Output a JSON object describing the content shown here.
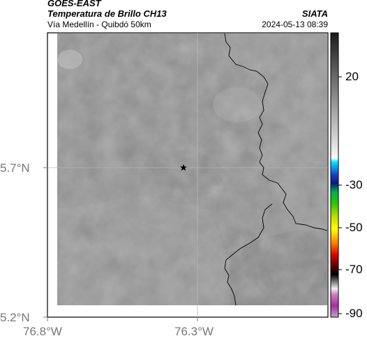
{
  "header": {
    "satellite": "GOES-EAST",
    "product": "Temperatura de Brillo CH13",
    "region": "Vía Medellín - Quibdó 50km",
    "source": "SIATA",
    "timestamp": "2024-05-13 08:39"
  },
  "map": {
    "lat_labels": [
      "5.7°N",
      "5.2°N"
    ],
    "lon_labels": [
      "76.8°W",
      "76.3°W"
    ],
    "marker": "star-marker",
    "colors": {
      "background_gray": "#8a8a8a",
      "frame": "#000000",
      "coastline": "#000000"
    }
  },
  "colorbar": {
    "ticks": [
      "20",
      "-30",
      "-50",
      "-70",
      "-90"
    ]
  }
}
